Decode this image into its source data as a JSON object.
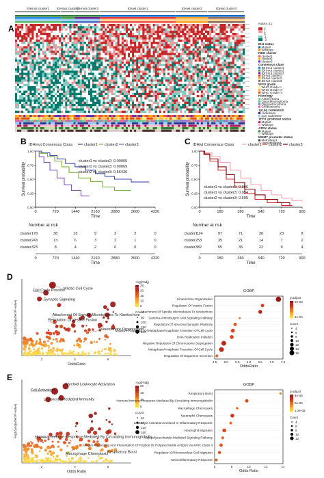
{
  "panels": {
    "a": "A",
    "b": "B",
    "c": "C",
    "d": "D",
    "e": "E"
  },
  "heatmap": {
    "clusters": [
      "IDHmut cluster1",
      "IDHmut cluster2",
      "IDHmut cluster3",
      "IDHwt cluster1",
      "IDHwt cluster2",
      "IDHwt cluster3"
    ],
    "legend_title": "matrix_51",
    "scale_labels": [
      "2",
      "1",
      "0",
      "-1",
      "-2"
    ],
    "scale_colors": [
      "#c62828",
      "#ef9a9a",
      "#ffffff",
      "#80cbc4",
      "#00796b"
    ],
    "annotation_legends": [
      {
        "title": "IDH status",
        "items": [
          "Mutant",
          "Wildtype"
        ],
        "colors": [
          "#1565c0",
          "#fb8c00"
        ]
      },
      {
        "title": "RBG cluster",
        "items": [
          "cluster1",
          "cluster2",
          "cluster3"
        ],
        "colors": [
          "#ef5350",
          "#ffb300",
          "#5e35b1"
        ]
      },
      {
        "title": "Consensus class",
        "items": [
          "IDHmut cluster1",
          "IDHmut cluster2",
          "IDHmut cluster3",
          "IDHwt cluster1",
          "IDHwt cluster2",
          "IDHwt cluster3"
        ],
        "colors": [
          "#1e88e5",
          "#43a047",
          "#6a1b9a",
          "#e53935",
          "#f9a825",
          "#8d6e63"
        ]
      },
      {
        "title": "WHO grade",
        "items": [
          "WHO Grade II",
          "WHO Grade III",
          "WHO Grade IV"
        ],
        "colors": [
          "#fff176",
          "#ffb74d",
          "#e65100"
        ]
      },
      {
        "title": "Histology",
        "items": [
          "Astrocytoma",
          "Oligodendroglioma",
          "Oligoastrocytoma",
          "Glioblastoma"
        ],
        "colors": [
          "#81c784",
          "#4db6ac",
          "#9575cd",
          "#f06292"
        ]
      },
      {
        "title": "1p19q codeletion",
        "items": [
          "codeletion",
          "non-codeletion"
        ],
        "colors": [
          "#283593",
          "#90caf9"
        ]
      },
      {
        "title": "TERT promoter status",
        "items": [
          "Mutant",
          "Wildtype"
        ],
        "colors": [
          "#ad1457",
          "#f8bbd0"
        ]
      },
      {
        "title": "ATRX status",
        "items": [
          "Mutant",
          "Wildtype"
        ],
        "colors": [
          "#2e7d32",
          "#c5e1a5"
        ]
      },
      {
        "title": "MGMT promoter status",
        "items": [
          "Methylated",
          "Unmethylated"
        ],
        "colors": [
          "#4e342e",
          "#d7ccc8"
        ]
      }
    ]
  },
  "km_b": {
    "legend_label": "IDHmut Consensus Class",
    "groups": [
      "cluster1",
      "cluster2",
      "cluster3"
    ],
    "colors": [
      "#3949ab",
      "#7cb342",
      "#7e57c2"
    ],
    "pvals": [
      "cluster1 vs cluster2: 0.00005",
      "cluster1 vs cluster3: 0.00069",
      "cluster2 vs cluster3: 0.56436"
    ],
    "xlabel": "Time",
    "ylabel": "Survival probability",
    "xticks": [
      "0",
      "720",
      "1440",
      "2160",
      "2880",
      "3600",
      "4320"
    ],
    "yticks": [
      "0.00",
      "0.25",
      "0.50",
      "0.75",
      "1.00"
    ],
    "risk_title": "Number at risk",
    "risk_rows": [
      {
        "label": "cluster1",
        "values": [
          "78",
          "38",
          "16",
          "9",
          "2",
          "2",
          "0"
        ]
      },
      {
        "label": "cluster2",
        "values": [
          "43",
          "13",
          "6",
          "3",
          "2",
          "1",
          "0"
        ]
      },
      {
        "label": "cluster3",
        "values": [
          "23",
          "8",
          "4",
          "2",
          "0",
          "0",
          "0"
        ]
      }
    ],
    "risk_xlabel": "Time"
  },
  "km_c": {
    "legend_label": "IDHwt Consensus Class",
    "groups": [
      "cluster1",
      "cluster2",
      "cluster3"
    ],
    "colors": [
      "#f3a5b5",
      "#d32f2f",
      "#7f0000"
    ],
    "pvals": [
      "cluster1 vs cluster2: 0.006",
      "cluster1 vs cluster3: 0.094",
      "cluster2 vs cluster3: 0.505"
    ],
    "xlabel": "Time",
    "ylabel": "Survival probability",
    "xticks": [
      "0",
      "180",
      "360",
      "540",
      "720",
      "900"
    ],
    "yticks": [
      "0.00",
      "0.25",
      "0.50",
      "0.75",
      "1.00"
    ],
    "risk_title": "Number at risk",
    "risk_rows": [
      {
        "label": "cluster1",
        "values": [
          "124",
          "97",
          "71",
          "36",
          "23",
          "8"
        ]
      },
      {
        "label": "cluster2",
        "values": [
          "53",
          "35",
          "21",
          "14",
          "7",
          "2"
        ]
      },
      {
        "label": "cluster3",
        "values": [
          "82",
          "55",
          "35",
          "22",
          "9",
          "4"
        ]
      }
    ],
    "risk_xlabel": "Time"
  },
  "volcano_d": {
    "xlabel": "OddsRatio",
    "ylabel": "-log10(Adjusted P-value)",
    "xticks": [
      "2",
      "4",
      "6"
    ],
    "legend_color_title": "-log(Padj)",
    "legend_color_ticks": [
      "25",
      "20",
      "15",
      "10",
      "5"
    ],
    "legend_size_title": "Count",
    "legend_size_ticks": [
      "50",
      "100",
      "150",
      "200"
    ],
    "labels": [
      "Mitotic Cell Cycle",
      "Cell Cycle Process",
      "Synaptic Signaling",
      "Attachment Of Spindle Microtubules To Kinetochore",
      "Regulation Of Vesicle Fusion",
      "Kinetochore Organization"
    ]
  },
  "dot_d": {
    "title": "GOBP",
    "xlabel": "OddsRatio",
    "xticks": [
      "4.5",
      "5.0",
      "5.5",
      "6.0",
      "6.5",
      "7.0",
      "7.5"
    ],
    "terms": [
      {
        "term": "Kinetochore Organization",
        "x": 7.3,
        "count": 18,
        "logp": 12
      },
      {
        "term": "Regulation Of Vesicle Fusion",
        "x": 6.6,
        "count": 10,
        "logp": 6
      },
      {
        "term": "Attachment Of Spindle Microtubules To Kinetochore",
        "x": 6.5,
        "count": 12,
        "logp": 8
      },
      {
        "term": "Gamma-Aminobutyric Acid Signaling Pathway",
        "x": 5.6,
        "count": 4,
        "logp": 2
      },
      {
        "term": "Regulation Of Neuronal Synaptic Plasticity",
        "x": 5.4,
        "count": 10,
        "logp": 4
      },
      {
        "term": "Negative Regulation Of Metaphase/Anaphase Transition Of Cell Cycle",
        "x": 5.3,
        "count": 12,
        "logp": 5
      },
      {
        "term": "DNA Replication Initiation",
        "x": 5.25,
        "count": 12,
        "logp": 5
      },
      {
        "term": "Negative Regulation Of Chromosome Segregation",
        "x": 4.9,
        "count": 16,
        "logp": 8
      },
      {
        "term": "Metaphase/Anaphase Transition Of Cell Cycle",
        "x": 4.8,
        "count": 16,
        "logp": 8
      },
      {
        "term": "Regulation Of Dopamine Secretion",
        "x": 4.6,
        "count": 8,
        "logp": 3
      }
    ],
    "legend_color_title": "p.adjust",
    "legend_color_ticks": [
      "5e-03",
      "1e-04"
    ],
    "legend_size_title": "Count",
    "legend_size_ticks": [
      "4",
      "6",
      "8",
      "10",
      "12",
      "14",
      "16"
    ]
  },
  "volcano_e": {
    "xlabel": "Odds Ratio",
    "ylabel": "-log10(Adjusted P-value)",
    "xticks": [
      "2",
      "4",
      "6"
    ],
    "legend_color_title": "-log(Padj)",
    "legend_color_ticks": [
      "20",
      "15",
      "10",
      "5"
    ],
    "legend_size_title": "Count",
    "legend_size_ticks": [
      "40",
      "80",
      "120",
      "160"
    ],
    "labels": [
      "Myeloid Leukocyte Activation",
      "Cell Activation",
      "Leukocyte Mediated Immunity",
      "Humoral Immune Response Mediated By Circulating Immunoglobulin",
      "Respiratory Burst",
      "Macrophage Chemotaxis"
    ]
  },
  "dot_e": {
    "title": "GOBP",
    "xlabel": "Odds Ratio",
    "xticks": [
      "6",
      "8",
      "10",
      "12",
      "14"
    ],
    "terms": [
      {
        "term": "Respiratory Burst",
        "x": 14.2,
        "count": 5,
        "logp": 2
      },
      {
        "term": "Humoral Immune Response Mediated By Circulating Immunoglobulin",
        "x": 10.0,
        "count": 10,
        "logp": 5
      },
      {
        "term": "Macrophage Chemotaxis",
        "x": 8.8,
        "count": 6,
        "logp": 3
      },
      {
        "term": "Neutrophil Chemotaxis",
        "x": 8.2,
        "count": 12,
        "logp": 6
      },
      {
        "term": "Leukocyte Activation Involved In Inflammatory Response",
        "x": 8.0,
        "count": 7,
        "logp": 3
      },
      {
        "term": "Neutrophil Migration",
        "x": 7.2,
        "count": 12,
        "logp": 5
      },
      {
        "term": "Lipopolysaccharide-Mediated Signaling Pathway",
        "x": 7.0,
        "count": 8,
        "logp": 3
      },
      {
        "term": "Antigen Processing And Presentation Of Peptide Or Polysaccharide Antigen Via MHC Class II",
        "x": 6.8,
        "count": 10,
        "logp": 4
      },
      {
        "term": "Regulation Of Mononuclear Cell Migration",
        "x": 6.6,
        "count": 9,
        "logp": 4
      },
      {
        "term": "Neuroinflammatory Response",
        "x": 6.2,
        "count": 8,
        "logp": 3
      }
    ],
    "legend_color_title": "p.adjust",
    "legend_color_ticks": [
      "4e-06",
      "8e-06",
      "1.2e-05"
    ],
    "legend_size_title": "Count",
    "legend_size_ticks": [
      "4",
      "6",
      "8",
      "10",
      "12"
    ]
  }
}
